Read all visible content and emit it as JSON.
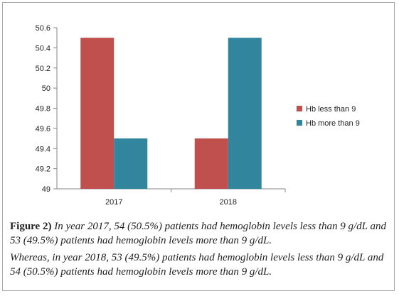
{
  "chart_data": {
    "type": "bar",
    "categories": [
      "2017",
      "2018"
    ],
    "series": [
      {
        "name": "Hb less than 9",
        "values": [
          50.5,
          49.5
        ],
        "color": "#c0504d"
      },
      {
        "name": "Hb more than 9",
        "values": [
          49.5,
          50.5
        ],
        "color": "#31859c"
      }
    ],
    "ylim": [
      49,
      50.6
    ],
    "yticks": [
      "49",
      "49.2",
      "49.4",
      "49.6",
      "49.8",
      "50",
      "50.2",
      "50.4",
      "50.6"
    ],
    "grid": false,
    "legend": "right"
  },
  "caption": {
    "label": "Figure 2)",
    "line1": "In year 2017, 54 (50.5%) patients had hemoglobin levels less than 9 g/dL and 53 (49.5%) patients had hemoglobin levels more than 9 g/dL.",
    "line2": "Whereas, in year 2018, 53 (49.5%) patients had hemoglobin levels less than 9 g/dL and 54 (50.5%) patients had hemoglobin levels more than 9 g/dL."
  }
}
